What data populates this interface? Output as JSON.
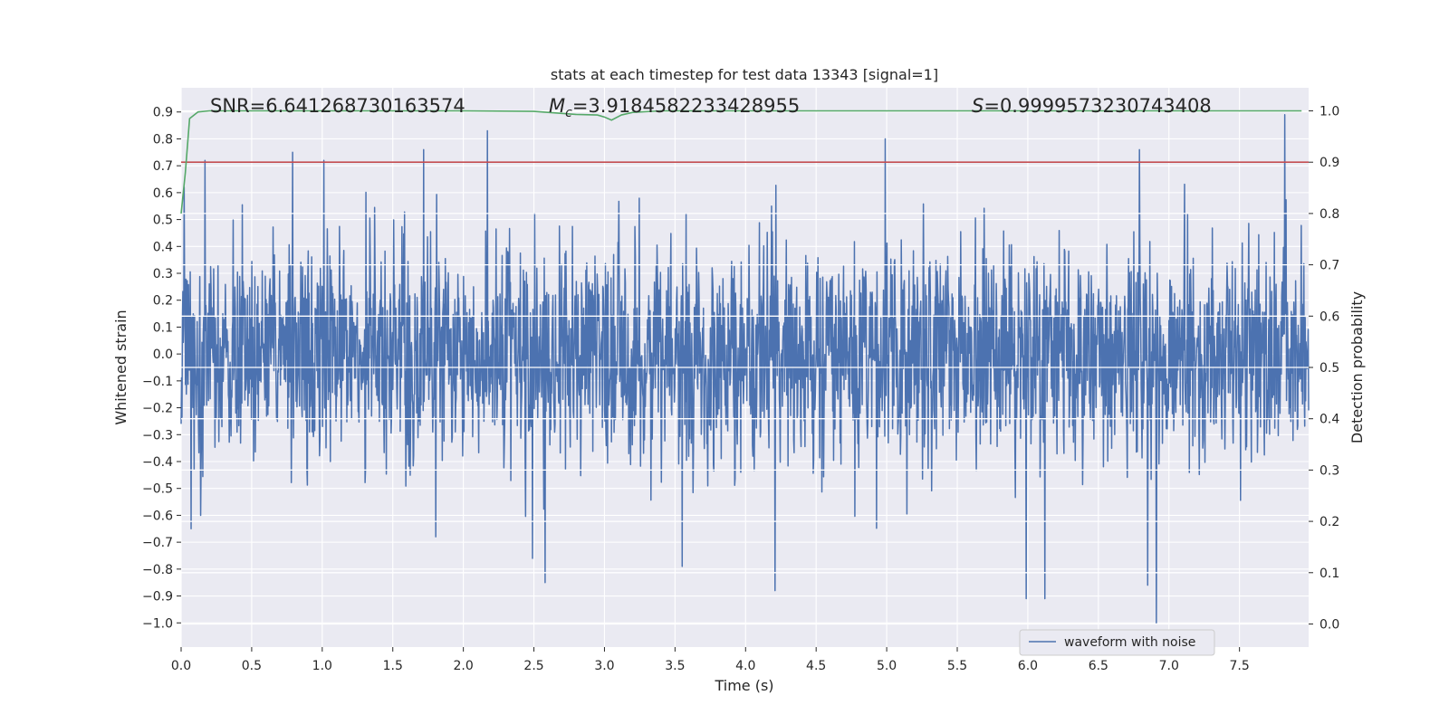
{
  "chart_data": {
    "type": "line",
    "title": "stats at each timestep for test data 13343 [signal=1]",
    "xlabel": "Time (s)",
    "ylabel": "Whitened strain",
    "y2label": "Detection probability",
    "xlim": [
      0.0,
      7.99
    ],
    "ylim": [
      -1.09,
      0.99
    ],
    "y2lim": [
      -0.045,
      1.045
    ],
    "xticks": [
      "0.0",
      "0.5",
      "1.0",
      "1.5",
      "2.0",
      "2.5",
      "3.0",
      "3.5",
      "4.0",
      "4.5",
      "5.0",
      "5.5",
      "6.0",
      "6.5",
      "7.0",
      "7.5"
    ],
    "yticks": [
      "0.9",
      "0.8",
      "0.7",
      "0.6",
      "0.5",
      "0.4",
      "0.3",
      "0.2",
      "0.1",
      "0.0",
      "−0.1",
      "−0.2",
      "−0.3",
      "−0.4",
      "−0.5",
      "−0.6",
      "−0.7",
      "−0.8",
      "−0.9",
      "−1.0"
    ],
    "y2ticks": [
      "1.0",
      "0.9",
      "0.8",
      "0.7",
      "0.6",
      "0.5",
      "0.4",
      "0.3",
      "0.2",
      "0.1",
      "0.0"
    ],
    "grid": true,
    "legend_position": "lower-right",
    "annotations": {
      "snr": "SNR=6.641268730163574",
      "mc_symbol": "M",
      "mc_sub": "c",
      "mc_value": "=3.9184582233428955",
      "s_symbol": "S",
      "s_value": "=0.9999573230743408"
    },
    "threshold": {
      "axis": "right",
      "value": 0.9,
      "color": "#c44e52"
    },
    "series": [
      {
        "name": "waveform with noise",
        "axis": "left",
        "color": "#4c72b0",
        "kind": "noise-waveform",
        "notable_peaks": [
          {
            "x": 0.02,
            "y": 0.62
          },
          {
            "x": 0.17,
            "y": 0.72
          },
          {
            "x": 0.79,
            "y": 0.75
          },
          {
            "x": 1.01,
            "y": 0.72
          },
          {
            "x": 1.72,
            "y": 0.76
          },
          {
            "x": 2.17,
            "y": 0.83
          },
          {
            "x": 4.99,
            "y": 0.8
          },
          {
            "x": 6.79,
            "y": 0.76
          },
          {
            "x": 7.82,
            "y": 0.89
          }
        ],
        "notable_troughs": [
          {
            "x": 0.07,
            "y": -0.65
          },
          {
            "x": 2.49,
            "y": -0.76
          },
          {
            "x": 2.58,
            "y": -0.85
          },
          {
            "x": 3.55,
            "y": -0.79
          },
          {
            "x": 4.21,
            "y": -0.88
          },
          {
            "x": 5.99,
            "y": -0.91
          },
          {
            "x": 6.12,
            "y": -0.91
          },
          {
            "x": 6.85,
            "y": -0.86
          },
          {
            "x": 6.91,
            "y": -1.0
          }
        ]
      },
      {
        "name": "detection probability",
        "axis": "right",
        "color": "#55a868",
        "x": [
          0.0,
          0.03,
          0.06,
          0.12,
          0.2,
          0.5,
          1.0,
          1.5,
          2.0,
          2.5,
          2.8,
          2.95,
          3.0,
          3.05,
          3.12,
          3.2,
          3.4,
          4.0,
          4.5,
          5.0,
          6.0,
          7.0,
          7.94
        ],
        "y": [
          0.8,
          0.88,
          0.985,
          0.998,
          1.0,
          1.0,
          1.0,
          1.0,
          1.0,
          0.999,
          0.993,
          0.992,
          0.988,
          0.982,
          0.992,
          0.997,
          1.0,
          1.0,
          1.0,
          1.0,
          1.0,
          1.0,
          1.0
        ]
      }
    ]
  }
}
